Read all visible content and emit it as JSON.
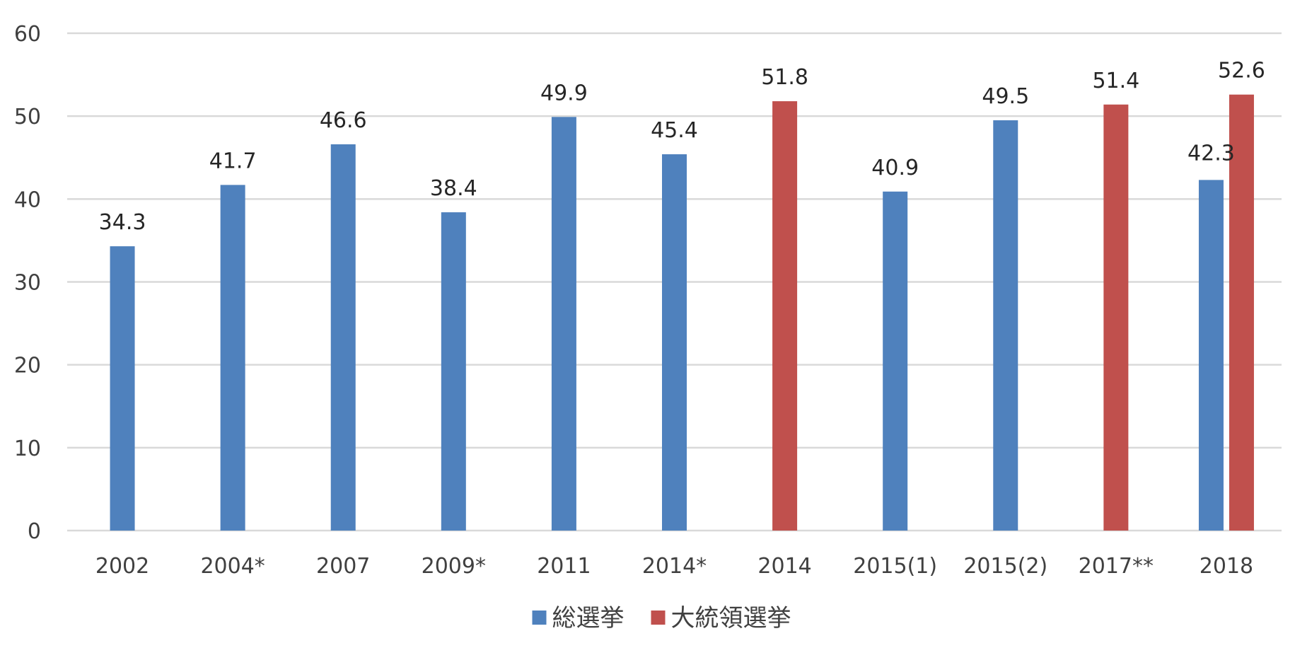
{
  "chart_data": {
    "type": "bar",
    "categories": [
      "2002",
      "2004*",
      "2007",
      "2009*",
      "2011",
      "2014*",
      "2014",
      "2015(1)",
      "2015(2)",
      "2017**",
      "2018"
    ],
    "series": [
      {
        "name": "総選挙",
        "color": "#4f81bd",
        "values": [
          34.3,
          41.7,
          46.6,
          38.4,
          49.9,
          45.4,
          null,
          40.9,
          49.5,
          null,
          42.3
        ]
      },
      {
        "name": "大統領選挙",
        "color": "#c0504d",
        "values": [
          null,
          null,
          null,
          null,
          null,
          null,
          51.8,
          null,
          null,
          51.4,
          52.6
        ]
      }
    ],
    "ylim": [
      0,
      60
    ],
    "yticks": [
      0,
      10,
      20,
      30,
      40,
      50,
      60
    ],
    "grid": true,
    "legend": "bottom-center",
    "title": "",
    "xlabel": "",
    "ylabel": ""
  }
}
